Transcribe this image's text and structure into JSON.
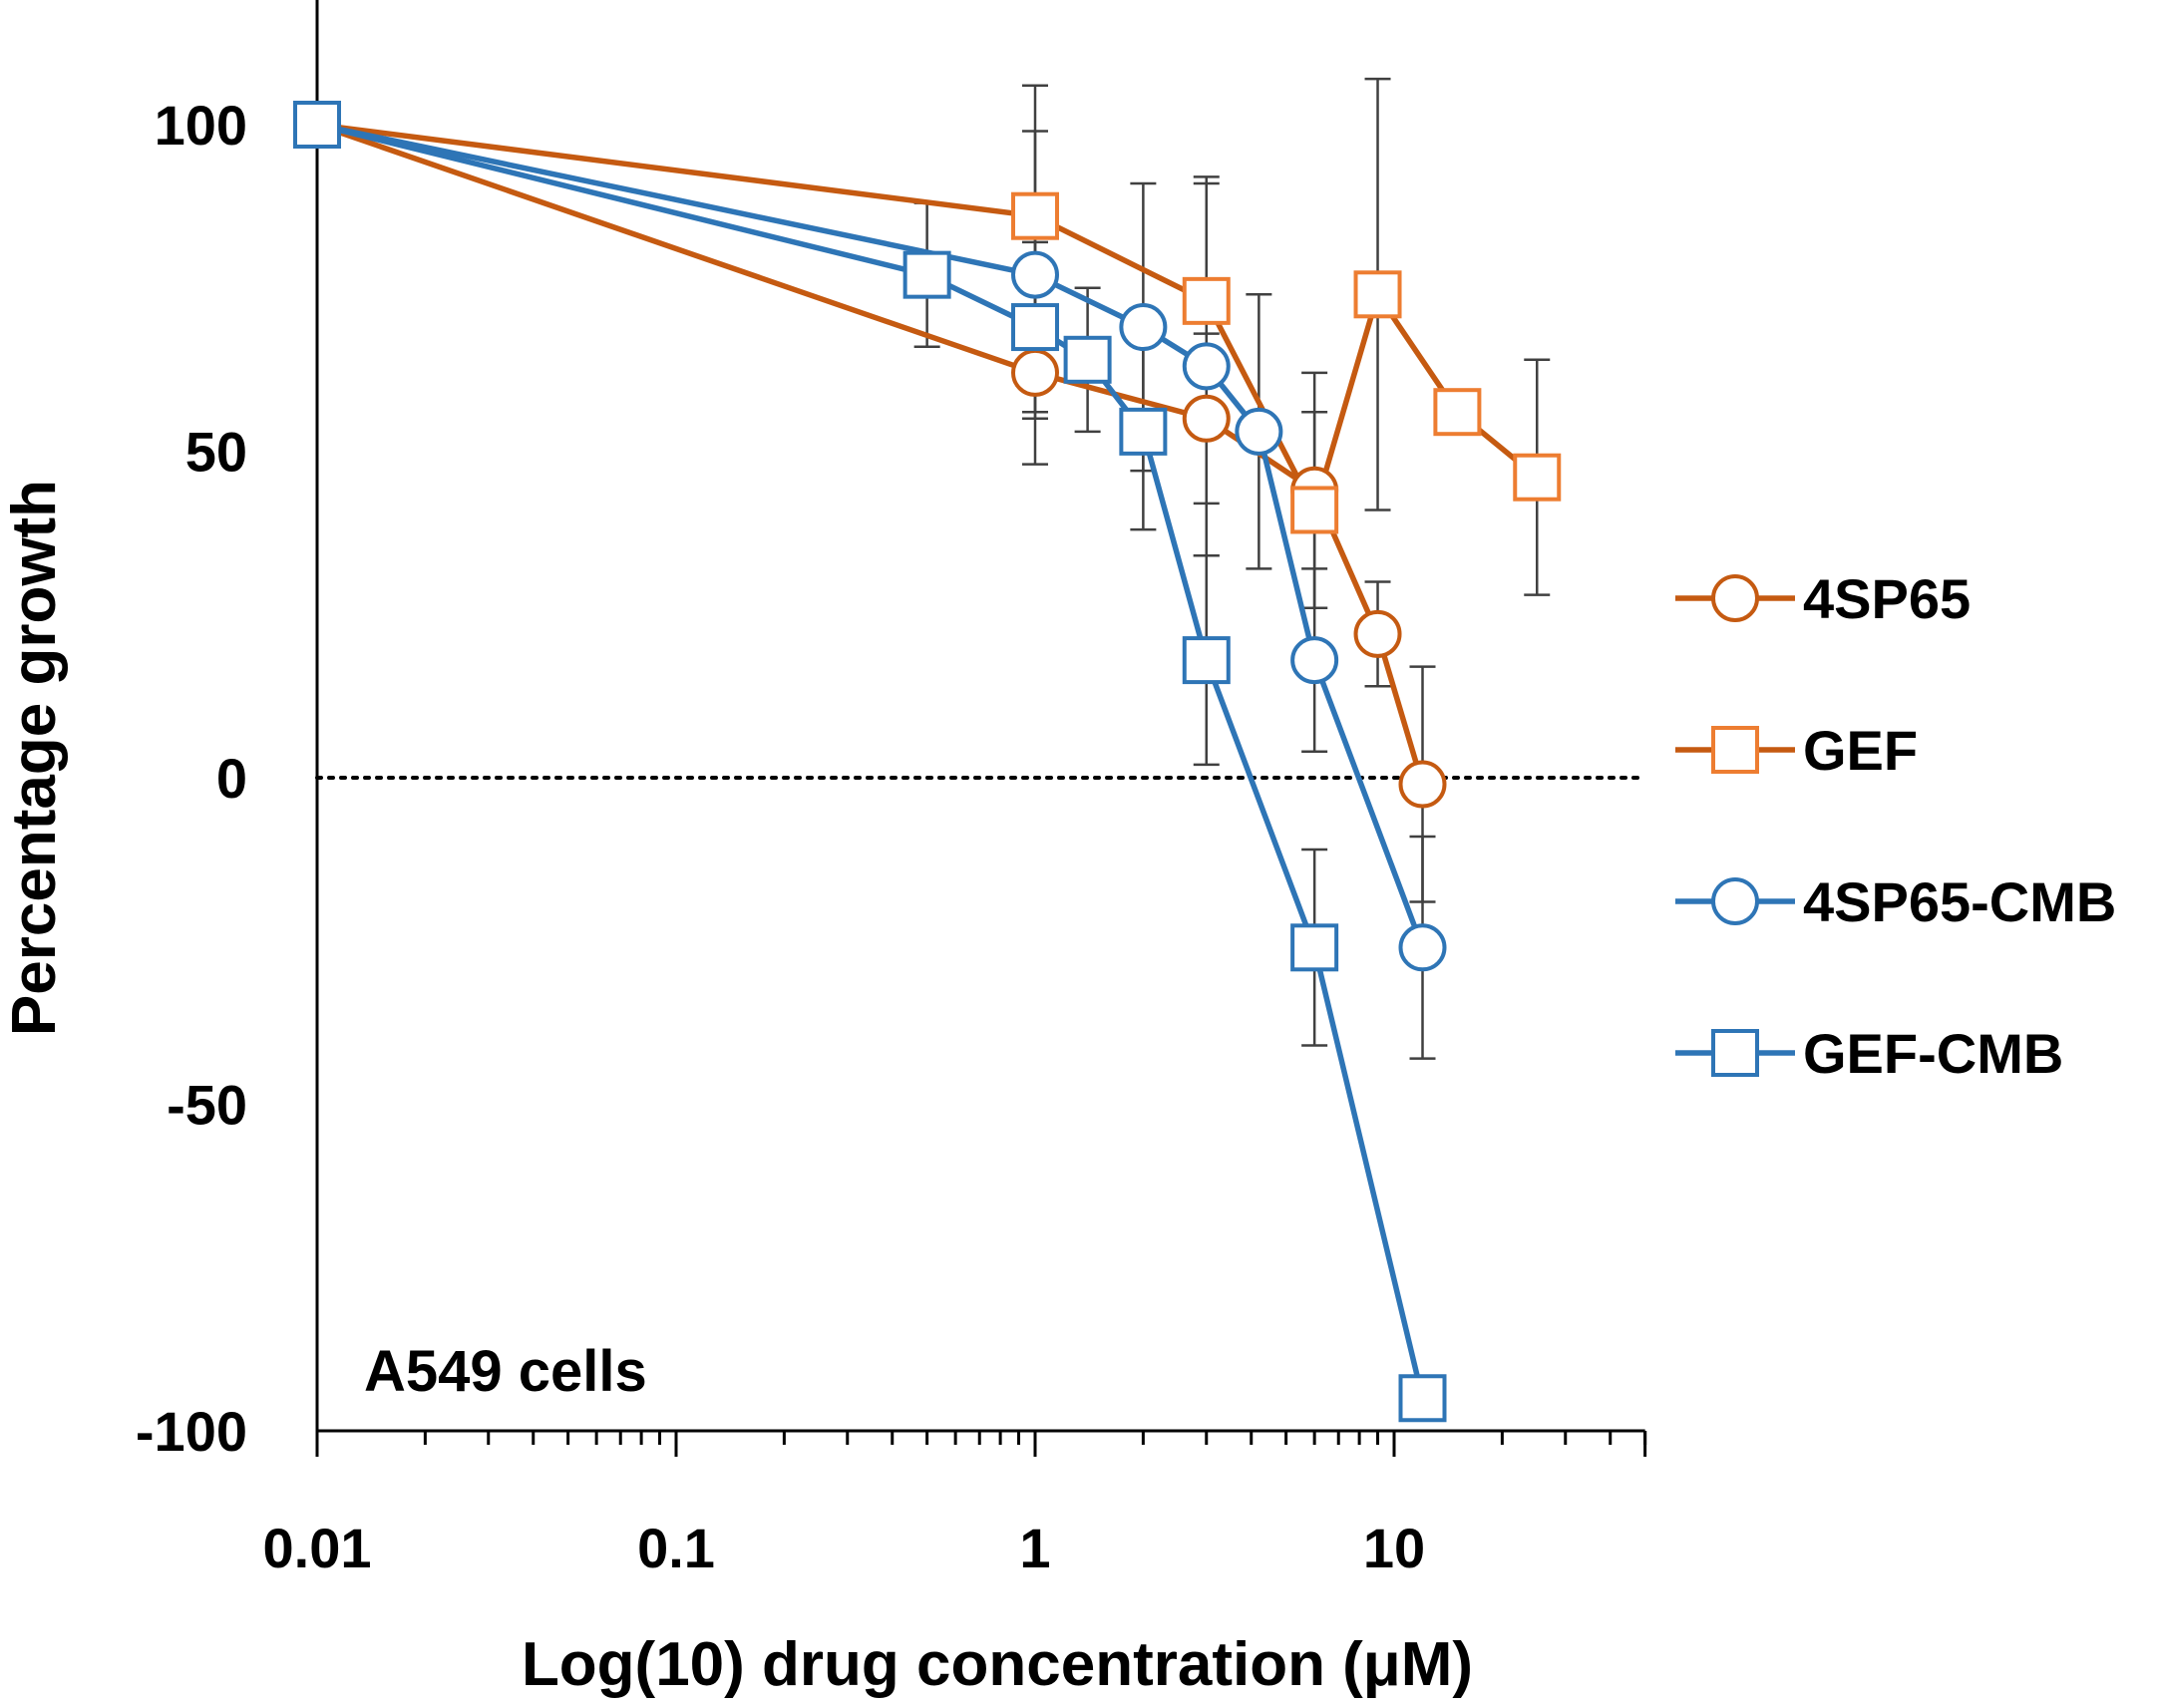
{
  "chart_data": {
    "type": "line",
    "title": "",
    "annotation": "A549 cells",
    "xlabel": "Log(10) drug concentration (μM)",
    "ylabel": "Percentage growth",
    "xscale": "log",
    "xlim": [
      0.01,
      50
    ],
    "ylim": [
      -100,
      100
    ],
    "x_ticks": [
      0.01,
      0.1,
      1,
      10
    ],
    "x_tick_labels": [
      "0.01",
      "0.1",
      "1",
      "10"
    ],
    "y_ticks": [
      100,
      50,
      0,
      -50,
      -100
    ],
    "y_tick_labels": [
      "100",
      "50",
      "0",
      "-50",
      "-100"
    ],
    "reference_line": {
      "y": 0,
      "style": "dotted"
    },
    "legend_position": "right",
    "series": [
      {
        "name": "4SP65",
        "color": "#C55A11",
        "marker": "circle",
        "x": [
          0.01,
          1,
          3,
          6,
          9,
          12
        ],
        "y": [
          100,
          62,
          55,
          44,
          22,
          -1
        ],
        "err": [
          0,
          14,
          13,
          18,
          8,
          18
        ]
      },
      {
        "name": "GEF",
        "color": "#ED7D31",
        "line_color": "#C55A11",
        "marker": "square",
        "x": [
          0.01,
          1,
          3,
          6,
          9,
          15,
          25
        ],
        "y": [
          100,
          86,
          73,
          41,
          74,
          56,
          46
        ],
        "err": [
          0,
          20,
          18,
          15,
          33,
          1,
          18
        ]
      },
      {
        "name": "4SP65-CMB",
        "color": "#2E75B6",
        "marker": "circle",
        "x": [
          0.01,
          1,
          2,
          3,
          4.2,
          6,
          12
        ],
        "y": [
          100,
          77,
          69,
          63,
          53,
          18,
          -26
        ],
        "err": [
          0,
          22,
          22,
          29,
          21,
          14,
          17
        ]
      },
      {
        "name": "GEF-CMB",
        "color": "#2E75B6",
        "marker": "square",
        "x": [
          0.01,
          0.5,
          1,
          1.4,
          2,
          3,
          6,
          12
        ],
        "y": [
          100,
          77,
          69,
          64,
          53,
          18,
          -26,
          -95
        ],
        "err": [
          0,
          11,
          13,
          11,
          15,
          16,
          15,
          2
        ]
      }
    ]
  }
}
